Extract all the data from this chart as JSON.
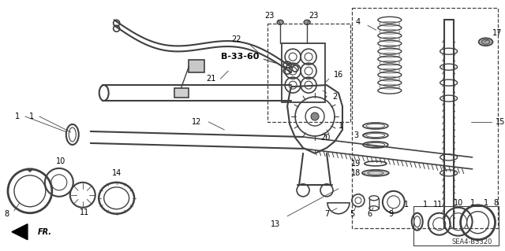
{
  "background_color": "#ffffff",
  "fig_width": 6.4,
  "fig_height": 3.19,
  "dpi": 100,
  "diagram_code": "SEA4-B3320",
  "ref_code": "B-33-60",
  "line_color": "#404040",
  "light_gray": "#888888",
  "dark_gray": "#333333"
}
